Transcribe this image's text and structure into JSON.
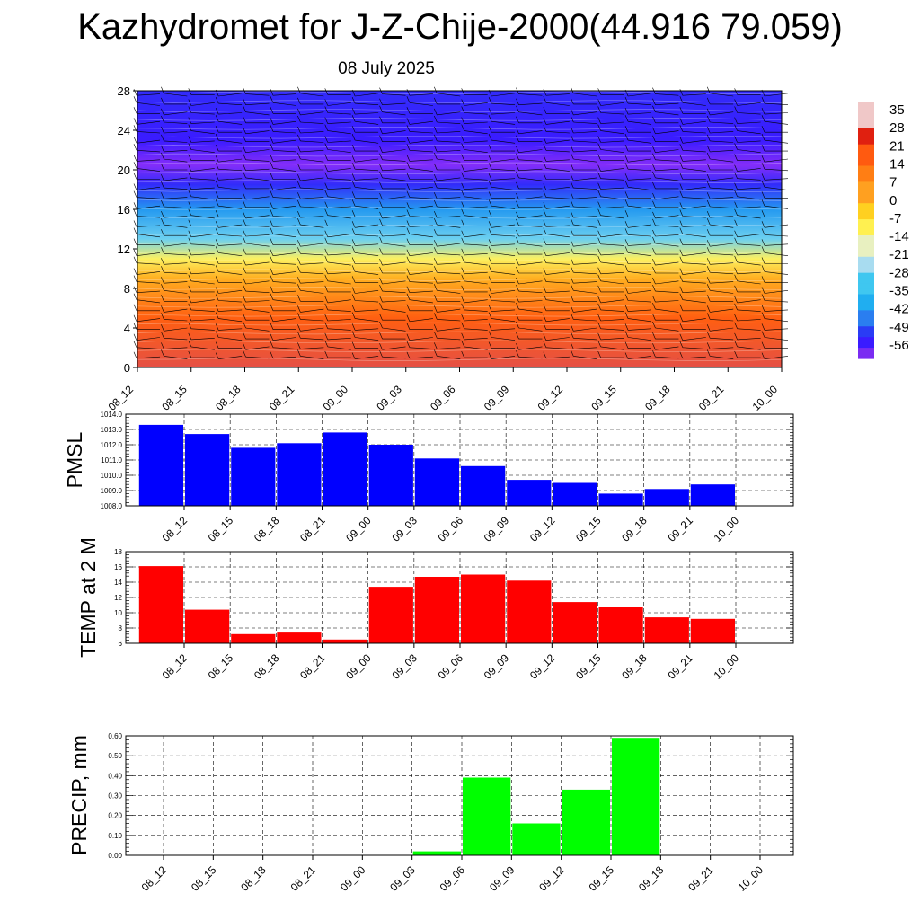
{
  "title": "Kazhydromet for J-Z-Chije-2000(44.916 79.059)",
  "date": "08 July 2025",
  "chart_data": [
    {
      "type": "heatmap",
      "name": "temperature-height cross-section with wind barbs",
      "x_categories": [
        "08_12",
        "08_15",
        "08_18",
        "08_21",
        "09_00",
        "09_03",
        "09_06",
        "09_09",
        "09_12",
        "09_15",
        "09_18",
        "09_21",
        "10_00"
      ],
      "y_ticks": [
        0,
        4,
        8,
        12,
        16,
        20,
        24,
        28
      ],
      "ylim": [
        0,
        28
      ],
      "colorbar_ticks": [
        "35",
        "28",
        "21",
        "14",
        "7",
        "0",
        "-7",
        "-14",
        "-21",
        "-28",
        "-35",
        "-42",
        "-49",
        "-56"
      ],
      "temperature_profile": [
        {
          "height": 0,
          "value": 30
        },
        {
          "height": 5,
          "value": 20
        },
        {
          "height": 9,
          "value": 5
        },
        {
          "height": 11,
          "value": -8
        },
        {
          "height": 13,
          "value": -25
        },
        {
          "height": 16,
          "value": -38
        },
        {
          "height": 18.5,
          "value": -50
        },
        {
          "height": 20.5,
          "value": -58
        },
        {
          "height": 23,
          "value": -52
        },
        {
          "height": 28,
          "value": -50
        }
      ],
      "colorscale": [
        {
          "value": -60,
          "color": "#8e2dff"
        },
        {
          "value": -56,
          "color": "#7a2cf2"
        },
        {
          "value": -52,
          "color": "#3a1bff"
        },
        {
          "value": -48,
          "color": "#2a3cf5"
        },
        {
          "value": -42,
          "color": "#2a7ef0"
        },
        {
          "value": -35,
          "color": "#20aef0"
        },
        {
          "value": -28,
          "color": "#3fc7f0"
        },
        {
          "value": -21,
          "color": "#a8dcf0"
        },
        {
          "value": -14,
          "color": "#e8f0c0"
        },
        {
          "value": -7,
          "color": "#fff050"
        },
        {
          "value": 0,
          "color": "#ffd020"
        },
        {
          "value": 7,
          "color": "#ffa020"
        },
        {
          "value": 14,
          "color": "#ff7e14"
        },
        {
          "value": 21,
          "color": "#ff5a10"
        },
        {
          "value": 28,
          "color": "#e02010"
        },
        {
          "value": 35,
          "color": "#f0c8c8"
        }
      ]
    },
    {
      "type": "line",
      "ylabel": "PMSL",
      "categories": [
        "08_12",
        "08_15",
        "08_18",
        "08_21",
        "09_00",
        "09_03",
        "09_06",
        "09_09",
        "09_12",
        "09_15",
        "09_18",
        "09_21",
        "10_00"
      ],
      "values": [
        1013.3,
        1012.7,
        1011.8,
        1012.1,
        1012.8,
        1012.0,
        1011.1,
        1010.6,
        1009.7,
        1009.5,
        1008.8,
        1009.1,
        1009.4
      ],
      "ylim": [
        1008.0,
        1014.0
      ],
      "yticks": [
        "1008.0",
        "1009.0",
        "1010.0",
        "1011.0",
        "1012.0",
        "1013.0",
        "1014.0"
      ],
      "color": "#0000ff",
      "grid": true
    },
    {
      "type": "line",
      "ylabel": "TEMP at 2 M",
      "categories": [
        "08_12",
        "08_15",
        "08_18",
        "08_21",
        "09_00",
        "09_03",
        "09_06",
        "09_09",
        "09_12",
        "09_15",
        "09_18",
        "09_21",
        "10_00"
      ],
      "values": [
        16.1,
        10.4,
        7.2,
        7.4,
        6.5,
        13.4,
        14.7,
        15.0,
        14.2,
        11.4,
        10.7,
        9.4,
        9.2
      ],
      "ylim": [
        6,
        18
      ],
      "yticks": [
        "6",
        "8",
        "10",
        "12",
        "14",
        "16",
        "18"
      ],
      "color": "#ff0000",
      "grid": true
    },
    {
      "type": "bar",
      "ylabel": "PRECIP, mm",
      "categories": [
        "08_12",
        "08_15",
        "08_18",
        "08_21",
        "09_00",
        "09_03",
        "09_06",
        "09_09",
        "09_12",
        "09_15",
        "09_18",
        "09_21",
        "10_00"
      ],
      "values": [
        0,
        0,
        0,
        0,
        0,
        0,
        0.02,
        0.39,
        0.16,
        0.33,
        0.59,
        0,
        0
      ],
      "ylim": [
        0,
        0.6
      ],
      "yticks": [
        "0.00",
        "0.10",
        "0.20",
        "0.30",
        "0.40",
        "0.50",
        "0.60"
      ],
      "color": "#00ff00",
      "grid": true
    }
  ]
}
